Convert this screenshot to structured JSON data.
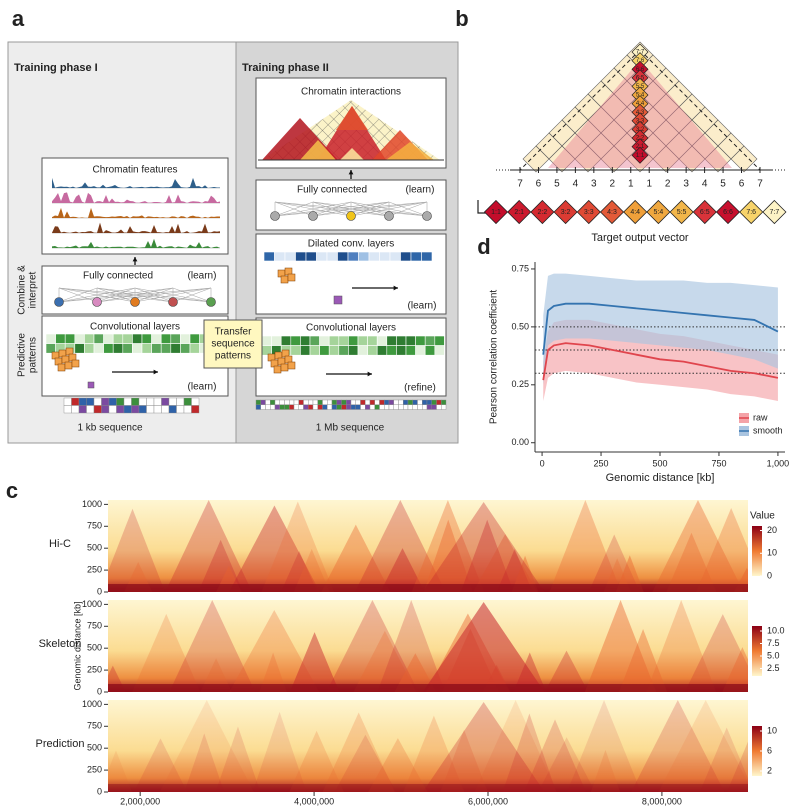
{
  "panel_labels": [
    "a",
    "b",
    "c",
    "d"
  ],
  "panel_a": {
    "phase1_title": "Training phase I",
    "phase2_title": "Training phase II",
    "chromatin_features": "Chromatin features",
    "fully_connected": "Fully connected",
    "learn": "(learn)",
    "refine": "(refine)",
    "conv_layers": "Convolutional layers",
    "dilated": "Dilated conv. layers",
    "chromatin_interactions": "Chromatin interactions",
    "transfer": [
      "Transfer",
      "sequence",
      "patterns"
    ],
    "seq1": "1 kb sequence",
    "seq2": "1 Mb sequence",
    "side1": [
      "Combine &",
      "interpret"
    ],
    "side2": [
      "Predictive",
      "patterns"
    ]
  },
  "panel_b": {
    "distance_labels": [
      "7",
      "6",
      "5",
      "4",
      "3",
      "2",
      "1",
      "1",
      "2",
      "3",
      "4",
      "5",
      "6",
      "7"
    ],
    "column": [
      {
        "label": "7:7",
        "color": "#fdf3c6"
      },
      {
        "label": "7:6",
        "color": "#f7d36a"
      },
      {
        "label": "6:6",
        "color": "#c8102e"
      },
      {
        "label": "6:5",
        "color": "#d9333a"
      },
      {
        "label": "5:5",
        "color": "#f2b64a"
      },
      {
        "label": "5:4",
        "color": "#f0a83f"
      },
      {
        "label": "4:4",
        "color": "#f0a03a"
      },
      {
        "label": "4:3",
        "color": "#e35a38"
      },
      {
        "label": "3:3",
        "color": "#e04a35"
      },
      {
        "label": "3:2",
        "color": "#db3b33"
      },
      {
        "label": "2:2",
        "color": "#d42a30"
      },
      {
        "label": "2:1",
        "color": "#cc1a2e"
      },
      {
        "label": "1:1",
        "color": "#c30d2b"
      }
    ],
    "vector": [
      {
        "label": "1:1",
        "color": "#c30d2b"
      },
      {
        "label": "2:1",
        "color": "#cc1a2e"
      },
      {
        "label": "2:2",
        "color": "#d42a30"
      },
      {
        "label": "3:2",
        "color": "#db3b33"
      },
      {
        "label": "3:3",
        "color": "#e04a35"
      },
      {
        "label": "4:3",
        "color": "#e35a38"
      },
      {
        "label": "4:4",
        "color": "#f0a03a"
      },
      {
        "label": "5:4",
        "color": "#f0a83f"
      },
      {
        "label": "5:5",
        "color": "#f2b64a"
      },
      {
        "label": "6:5",
        "color": "#d9333a"
      },
      {
        "label": "6:6",
        "color": "#c8102e"
      },
      {
        "label": "7:6",
        "color": "#f7d36a"
      },
      {
        "label": "7:7",
        "color": "#fdf3c6"
      }
    ],
    "caption": "Target output vector"
  },
  "chart_data": [
    {
      "type": "heatmap",
      "ylabel": "Genomic distance [kb]",
      "ylim": [
        0,
        1050
      ],
      "yticks": [
        0,
        250,
        500,
        750,
        1000
      ],
      "xlim": [
        1630000,
        8990000
      ],
      "xticks": [
        {
          "value": 2000000,
          "label": "2,000,000"
        },
        {
          "value": 4000000,
          "label": "4,000,000"
        },
        {
          "value": 6000000,
          "label": "6,000,000"
        },
        {
          "value": 8000000,
          "label": "8,000,000"
        }
      ],
      "colorbar_title": "Value",
      "panels": [
        {
          "name": "Hi-C",
          "clim": [
            0,
            22
          ],
          "cticks": [
            0,
            10,
            20
          ]
        },
        {
          "name": "Skeleton",
          "clim": [
            1,
            11
          ],
          "cticks": [
            2.5,
            {
              "value": 5,
              "label": "5.0"
            },
            7.5,
            {
              "value": 10,
              "label": "10.0"
            }
          ]
        },
        {
          "name": "Prediction",
          "clim": [
            1,
            11
          ],
          "cticks": [
            2,
            6,
            10
          ]
        }
      ]
    },
    {
      "type": "line",
      "xlabel": "Genomic distance [kb]",
      "ylabel": "Pearson correlation coefficient",
      "xlim": [
        -30,
        1030
      ],
      "ylim": [
        -0.04,
        0.78
      ],
      "xticks": [
        0,
        250,
        500,
        750,
        {
          "value": 1000,
          "label": "1,000"
        }
      ],
      "yticks": [
        {
          "value": 0,
          "label": "0.00"
        },
        0.25,
        {
          "value": 0.5,
          "label": "0.50"
        },
        0.75
      ],
      "hlines": [
        0.3,
        0.4,
        0.5
      ],
      "legend": "bottom-right",
      "x": [
        5,
        25,
        50,
        100,
        200,
        300,
        400,
        500,
        600,
        700,
        800,
        900,
        1000
      ],
      "series": [
        {
          "name": "raw",
          "color": "#e0454d",
          "band_color": "#f4a3a8",
          "values": [
            0.27,
            0.4,
            0.42,
            0.43,
            0.42,
            0.4,
            0.38,
            0.36,
            0.35,
            0.33,
            0.31,
            0.3,
            0.28
          ],
          "lower": [
            0.18,
            0.28,
            0.3,
            0.31,
            0.3,
            0.28,
            0.26,
            0.25,
            0.24,
            0.23,
            0.21,
            0.2,
            0.18
          ],
          "upper": [
            0.35,
            0.48,
            0.52,
            0.53,
            0.53,
            0.51,
            0.49,
            0.47,
            0.46,
            0.44,
            0.42,
            0.4,
            0.38
          ]
        },
        {
          "name": "smooth",
          "color": "#3474b0",
          "band_color": "#a9c4e0",
          "values": [
            0.38,
            0.57,
            0.59,
            0.6,
            0.6,
            0.59,
            0.58,
            0.57,
            0.56,
            0.55,
            0.54,
            0.53,
            0.48
          ],
          "lower": [
            0.25,
            0.42,
            0.44,
            0.45,
            0.45,
            0.44,
            0.43,
            0.42,
            0.41,
            0.4,
            0.38,
            0.36,
            0.32
          ],
          "upper": [
            0.55,
            0.72,
            0.73,
            0.73,
            0.72,
            0.71,
            0.7,
            0.7,
            0.7,
            0.69,
            0.69,
            0.68,
            0.67
          ]
        }
      ]
    }
  ]
}
